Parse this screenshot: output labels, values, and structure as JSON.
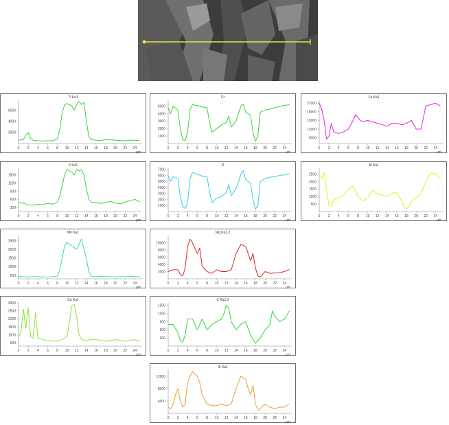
{
  "image": {
    "marker": "line-scan-marker"
  },
  "x_unit": "µm",
  "chart_data": [
    {
      "id": "ti",
      "type": "line",
      "title": "Ti Ka1",
      "color": "#35d435",
      "ylim": [
        0,
        7800
      ],
      "yticks": [
        2000,
        4000,
        6000
      ],
      "x": [
        0,
        1,
        1.5,
        2,
        2.5,
        3,
        4,
        5,
        6,
        7,
        8,
        8.5,
        9,
        9.5,
        10,
        11,
        11.5,
        12,
        12.5,
        13,
        13.5,
        14,
        14.5,
        15,
        16,
        17,
        18,
        19,
        20,
        21,
        22,
        23,
        24,
        25
      ],
      "values": [
        600,
        700,
        1500,
        2000,
        900,
        600,
        500,
        450,
        500,
        500,
        800,
        2500,
        5500,
        7000,
        7200,
        6800,
        6000,
        7000,
        7600,
        7000,
        7400,
        4000,
        1200,
        700,
        600,
        550,
        700,
        650,
        600,
        550,
        500,
        600,
        600,
        500
      ]
    },
    {
      "id": "cr",
      "type": "line",
      "title": "Cr",
      "color": "#35d435",
      "ylim": [
        0,
        5800
      ],
      "yticks": [
        1000,
        2000,
        3000,
        4000,
        5000
      ],
      "x": [
        0,
        0.5,
        1,
        2,
        2.5,
        3,
        3.5,
        4,
        4.5,
        5,
        6,
        7,
        8,
        8.5,
        9,
        10,
        11,
        12,
        12.5,
        13,
        14,
        15,
        15.5,
        16,
        17,
        17.5,
        18,
        18.5,
        19,
        20,
        21,
        22,
        23,
        24,
        25
      ],
      "values": [
        4800,
        4000,
        5000,
        4500,
        2000,
        500,
        400,
        1500,
        4500,
        5200,
        5100,
        4900,
        4800,
        3000,
        1500,
        2000,
        2500,
        2800,
        3700,
        2200,
        3000,
        5000,
        5300,
        4200,
        3800,
        1500,
        300,
        1000,
        4200,
        4500,
        4600,
        4800,
        5000,
        5100,
        5200
      ]
    },
    {
      "id": "fe",
      "type": "line",
      "title": "Fe Ka1",
      "color": "#e21ee2",
      "ylim": [
        7000,
        22000
      ],
      "yticks": [
        9000,
        12000,
        15000,
        18000,
        21000
      ],
      "x": [
        0,
        0.5,
        1,
        1.5,
        2,
        2.5,
        3,
        4,
        5,
        6,
        7,
        7.5,
        8,
        8.5,
        9,
        10,
        11,
        12,
        13,
        14,
        15,
        16,
        17,
        18,
        19,
        20,
        21,
        22,
        23,
        24,
        25
      ],
      "values": [
        21000,
        19000,
        15000,
        8500,
        9500,
        14000,
        11000,
        10500,
        11000,
        12000,
        15000,
        17000,
        16000,
        15000,
        14500,
        15000,
        14500,
        14000,
        13500,
        13000,
        14000,
        14000,
        13500,
        14000,
        15000,
        12000,
        12000,
        20000,
        20500,
        21000,
        20000
      ]
    },
    {
      "id": "v",
      "type": "line",
      "title": "V Ka1",
      "color": "#35d435",
      "ylim": [
        150,
        1750
      ],
      "yticks": [
        300,
        600,
        900,
        1200,
        1500
      ],
      "x": [
        0,
        1,
        2,
        3,
        4,
        5,
        6,
        7,
        8,
        8.5,
        9,
        9.5,
        10,
        11,
        11.5,
        12,
        12.5,
        13,
        13.5,
        14,
        14.5,
        15,
        16,
        17,
        18,
        19,
        20,
        21,
        22,
        23,
        24,
        25
      ],
      "values": [
        500,
        450,
        400,
        380,
        420,
        400,
        450,
        420,
        500,
        700,
        1100,
        1500,
        1700,
        1600,
        1500,
        1700,
        1650,
        1700,
        1500,
        1000,
        600,
        500,
        480,
        450,
        480,
        520,
        470,
        430,
        500,
        550,
        600,
        500
      ]
    },
    {
      "id": "o",
      "type": "line",
      "title": "O",
      "color": "#2fd2e2",
      "ylim": [
        0,
        7200
      ],
      "yticks": [
        1000,
        2000,
        3000,
        4000,
        5000,
        6000,
        7000
      ],
      "x": [
        0,
        0.5,
        1,
        2,
        2.5,
        3,
        3.5,
        4,
        4.5,
        5,
        6,
        7,
        8,
        8.5,
        9,
        10,
        11,
        12,
        12.5,
        13,
        14,
        15,
        15.5,
        16,
        17,
        17.5,
        18,
        18.5,
        19,
        20,
        21,
        22,
        23,
        24,
        25
      ],
      "values": [
        6000,
        5000,
        5800,
        5500,
        2500,
        800,
        500,
        1500,
        5500,
        6500,
        6200,
        5900,
        5800,
        3500,
        1500,
        2200,
        2500,
        3200,
        4500,
        2600,
        3800,
        6200,
        6800,
        5300,
        4700,
        2000,
        400,
        1000,
        5000,
        5500,
        5700,
        5800,
        6000,
        6100,
        6300
      ]
    },
    {
      "id": "al",
      "type": "line",
      "title": "Al Ka1",
      "color": "#ecec26",
      "ylim": [
        0,
        2900
      ],
      "yticks": [
        500,
        1000,
        1500,
        2000,
        2500
      ],
      "x": [
        0,
        0.5,
        1,
        1.5,
        2,
        2.5,
        3,
        4,
        5,
        6,
        7,
        8,
        9,
        10,
        11,
        12,
        13,
        14,
        15,
        16,
        17,
        17.5,
        18,
        18.5,
        19,
        20,
        21,
        22,
        23,
        24,
        25
      ],
      "values": [
        2500,
        2200,
        2600,
        1500,
        400,
        300,
        800,
        900,
        1100,
        1500,
        1700,
        1000,
        700,
        900,
        1400,
        1200,
        1100,
        1000,
        1200,
        1300,
        700,
        300,
        200,
        300,
        700,
        900,
        1200,
        2000,
        2600,
        2500,
        2200
      ]
    },
    {
      "id": "mn",
      "type": "line",
      "title": "Mn Ka1",
      "color": "#2fdc9a",
      "ylim": [
        300,
        2800
      ],
      "yticks": [
        500,
        1000,
        1500,
        2000,
        2500
      ],
      "x": [
        0,
        1,
        2,
        3,
        4,
        5,
        6,
        7,
        8,
        8.5,
        9,
        9.5,
        10,
        11,
        12,
        12.5,
        13,
        13.5,
        14,
        14.5,
        15,
        16,
        17,
        18,
        19,
        20,
        21,
        22,
        23,
        24,
        25
      ],
      "values": [
        450,
        420,
        400,
        430,
        420,
        410,
        400,
        420,
        450,
        800,
        1500,
        2200,
        2400,
        2200,
        2000,
        2300,
        2600,
        2000,
        1500,
        700,
        450,
        420,
        450,
        430,
        420,
        400,
        430,
        420,
        450,
        430,
        420
      ]
    },
    {
      "id": "mg",
      "type": "line",
      "title": "Mg Ka1,2",
      "color": "#d42828",
      "ylim": [
        0,
        12000
      ],
      "yticks": [
        2000,
        4000,
        6000,
        8000,
        10000
      ],
      "x": [
        0,
        1,
        2,
        2.5,
        3,
        3.5,
        4,
        4.5,
        5,
        6,
        6.5,
        7,
        8,
        9,
        10,
        11,
        12,
        13,
        14,
        15,
        16,
        16.5,
        17,
        17.5,
        18,
        18.5,
        19,
        20,
        21,
        22,
        23,
        24,
        25
      ],
      "values": [
        2000,
        2500,
        2500,
        1200,
        800,
        3000,
        9000,
        11000,
        10000,
        7000,
        8500,
        3500,
        2000,
        1500,
        2500,
        2000,
        2000,
        2500,
        7000,
        9500,
        9000,
        7000,
        5000,
        7000,
        3000,
        800,
        500,
        2000,
        1500,
        1600,
        1700,
        2000,
        2600
      ]
    },
    {
      "id": "ca",
      "type": "line",
      "title": "Ca Ka1",
      "color": "#8de32f",
      "ylim": [
        300,
        3000
      ],
      "yticks": [
        500,
        1000,
        1500,
        2000,
        2500,
        3000
      ],
      "x": [
        0,
        0.5,
        1,
        1.5,
        2,
        2.5,
        3,
        3.5,
        4,
        5,
        6,
        7,
        8,
        9,
        10,
        10.5,
        11,
        11.5,
        12,
        12.5,
        13,
        14,
        15,
        16,
        17,
        18,
        19,
        20,
        21,
        22,
        23,
        24,
        25
      ],
      "values": [
        800,
        1200,
        2600,
        1400,
        2700,
        900,
        800,
        2400,
        800,
        700,
        650,
        620,
        600,
        700,
        900,
        1800,
        2800,
        2900,
        2100,
        1000,
        700,
        650,
        700,
        700,
        650,
        600,
        650,
        700,
        650,
        600,
        650,
        700,
        600
      ]
    },
    {
      "id": "c",
      "type": "line",
      "title": "C Ka1,2",
      "color": "#35d435",
      "ylim": [
        0,
        1600
      ],
      "yticks": [
        300,
        600,
        900,
        1200,
        1500
      ],
      "x": [
        0,
        1,
        2,
        2.5,
        3,
        3.5,
        4,
        5,
        6,
        7,
        8,
        9,
        10,
        11,
        11.5,
        12,
        12.5,
        13,
        14,
        15,
        16,
        17,
        18,
        19,
        20,
        21,
        21.5,
        22,
        23,
        24,
        25
      ],
      "values": [
        800,
        800,
        500,
        200,
        150,
        400,
        1000,
        1000,
        600,
        1000,
        600,
        800,
        900,
        1000,
        1200,
        1500,
        1400,
        900,
        600,
        800,
        900,
        400,
        100,
        300,
        600,
        800,
        1300,
        1100,
        900,
        1000,
        1300
      ]
    },
    {
      "id": "si",
      "type": "line",
      "title": "Si Ka1",
      "color": "#f09a30",
      "ylim": [
        0,
        14000
      ],
      "yticks": [
        4000,
        8000,
        12000
      ],
      "x": [
        0,
        0.5,
        1,
        1.5,
        2,
        2.5,
        3,
        3.5,
        4,
        4.5,
        5,
        6,
        6.5,
        7,
        8,
        9,
        10,
        11,
        12,
        13,
        14,
        15,
        16,
        16.5,
        17,
        17.5,
        18,
        18.5,
        19,
        20,
        21,
        22,
        23,
        24,
        25
      ],
      "values": [
        2000,
        1500,
        3000,
        6000,
        8000,
        4000,
        2000,
        3000,
        10000,
        12000,
        13500,
        12000,
        10000,
        6000,
        3000,
        2500,
        2500,
        3000,
        2500,
        3000,
        8000,
        12000,
        11000,
        8000,
        6000,
        9000,
        3000,
        1000,
        1500,
        3000,
        2000,
        1500,
        2000,
        2000,
        3000
      ]
    }
  ]
}
